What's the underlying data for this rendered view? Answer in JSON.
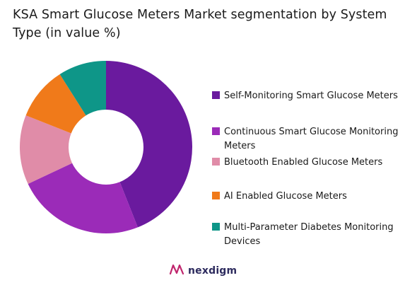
{
  "chart_data": {
    "type": "pie",
    "title": "KSA Smart Glucose Meters Market segmentation by System Type (in value %)",
    "categories": [
      "Self-Monitoring Smart Glucose Meters",
      "Continuous Smart Glucose Monitoring Meters",
      "Bluetooth Enabled Glucose Meters",
      "AI Enabled Glucose Meters",
      "Multi-Parameter Diabetes Monitoring Devices"
    ],
    "values": [
      44,
      24,
      13,
      10,
      9
    ],
    "colors": [
      "#6a1a9e",
      "#9b2bb8",
      "#e08ca8",
      "#f07a1a",
      "#0e9688"
    ],
    "legend_position": "right",
    "donut": true
  },
  "legend": {
    "items": [
      {
        "label": "Self-Monitoring Smart Glucose Meters",
        "color": "#6a1a9e"
      },
      {
        "label": "Continuous Smart Glucose Monitoring Meters",
        "color": "#9b2bb8"
      },
      {
        "label": "Bluetooth Enabled Glucose Meters",
        "color": "#e08ca8"
      },
      {
        "label": "AI Enabled Glucose Meters",
        "color": "#f07a1a"
      },
      {
        "label": "Multi-Parameter Diabetes Monitoring Devices",
        "color": "#0e9688"
      }
    ]
  },
  "brand": {
    "name": "nexdigm",
    "icon": "nexdigm-logo-icon"
  }
}
